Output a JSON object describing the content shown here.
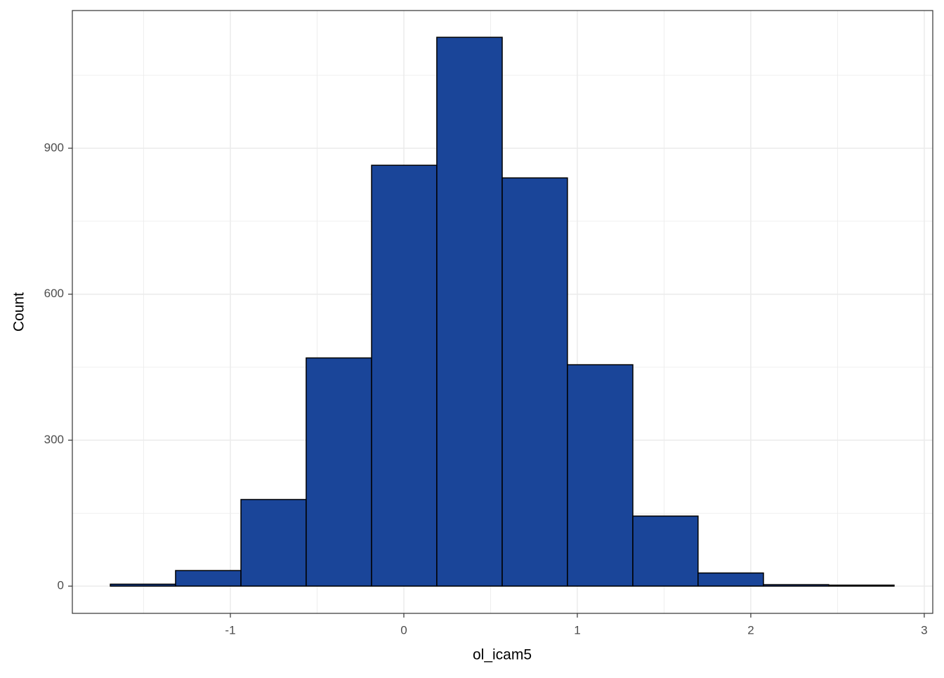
{
  "chart_data": {
    "type": "histogram",
    "x_label": "ol_icam5",
    "y_label": "Count",
    "bins": [
      -1.692,
      -1.316,
      -0.939,
      -0.563,
      -0.186,
      0.19,
      0.567,
      0.943,
      1.32,
      1.696,
      2.073,
      2.449,
      2.826
    ],
    "values": [
      4,
      32,
      178,
      469,
      865,
      1128,
      839,
      455,
      144,
      27,
      3,
      2
    ],
    "color": "#1a4599",
    "edge_color": "#000000",
    "xlim": [
      -1.911,
      3.049
    ],
    "xticks": [
      -1,
      0,
      1,
      2,
      3
    ],
    "ylim": [
      -56,
      1183
    ],
    "yticks": [
      0,
      300,
      600,
      900
    ],
    "x_minor_grid": [
      -1.5,
      -0.5,
      0.5,
      1.5,
      2.5
    ],
    "y_minor_grid": [
      150,
      450,
      750,
      1050
    ],
    "grid": true
  }
}
